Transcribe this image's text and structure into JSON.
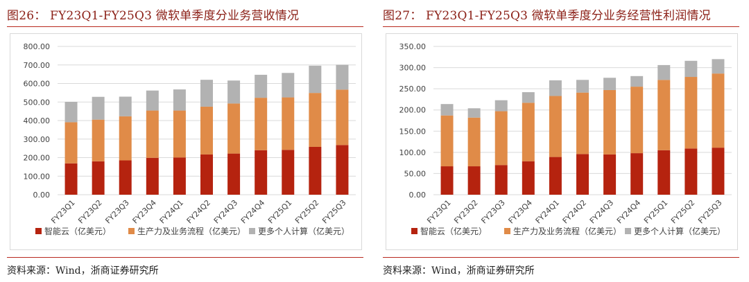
{
  "panels": [
    {
      "title": "图26： FY23Q1-FY25Q3 微软单季度分业务营收情况",
      "source": "资料来源：Wind，浙商证券研究所",
      "chart_data": {
        "type": "bar",
        "stacked": true,
        "categories": [
          "FY23Q1",
          "FY23Q2",
          "FY23Q3",
          "FY23Q4",
          "FY24Q1",
          "FY24Q2",
          "FY24Q3",
          "FY24Q4",
          "FY25Q1",
          "FY25Q2",
          "FY25Q3"
        ],
        "series": [
          {
            "name": "智能云（亿美元）",
            "color": "#b5230f",
            "values": [
              169,
              180,
              185,
              199,
              201,
              217,
              222,
              240,
              242,
              258,
              268
            ]
          },
          {
            "name": "生产力及业务流程（亿美元）",
            "color": "#e08b48",
            "values": [
              222,
              225,
              238,
              255,
              253,
              258,
              270,
              283,
              283,
              291,
              299
            ]
          },
          {
            "name": "更多个人计算（亿美元）",
            "color": "#b2b2b2",
            "values": [
              110,
              123,
              106,
              108,
              114,
              145,
              124,
              124,
              132,
              147,
              134
            ]
          }
        ],
        "ylim": [
          0,
          800
        ],
        "yticks": [
          "0.00",
          "100.00",
          "200.00",
          "300.00",
          "400.00",
          "500.00",
          "600.00",
          "700.00",
          "800.00"
        ],
        "ytick_values": [
          0,
          100,
          200,
          300,
          400,
          500,
          600,
          700,
          800
        ],
        "grid": true,
        "legend": "bottom"
      }
    },
    {
      "title": "图27： FY23Q1-FY25Q3 微软单季度分业务经营性利润情况",
      "source": "资料来源：Wind，浙商证券研究所",
      "chart_data": {
        "type": "bar",
        "stacked": true,
        "categories": [
          "FY23Q1",
          "FY23Q2",
          "FY23Q3",
          "FY23Q4",
          "FY24Q1",
          "FY24Q2",
          "FY24Q3",
          "FY24Q4",
          "FY25Q1",
          "FY25Q2",
          "FY25Q3"
        ],
        "series": [
          {
            "name": "智能云（亿美元）",
            "color": "#b5230f",
            "values": [
              67,
              67,
              70,
              79,
              89,
              96,
              95,
              98,
              105,
              109,
              111
            ]
          },
          {
            "name": "生产力及业务流程（亿美元）",
            "color": "#e08b48",
            "values": [
              120,
              115,
              127,
              138,
              144,
              145,
              152,
              157,
              166,
              169,
              175
            ]
          },
          {
            "name": "更多个人计算（亿美元）",
            "color": "#b2b2b2",
            "values": [
              27,
              22,
              26,
              25,
              37,
              30,
              29,
              25,
              35,
              38,
              34
            ]
          }
        ],
        "ylim": [
          0,
          350
        ],
        "yticks": [
          "0.00",
          "50.00",
          "100.00",
          "150.00",
          "200.00",
          "250.00",
          "300.00",
          "350.00"
        ],
        "ytick_values": [
          0,
          50,
          100,
          150,
          200,
          250,
          300,
          350
        ],
        "grid": true,
        "legend": "bottom"
      }
    }
  ]
}
